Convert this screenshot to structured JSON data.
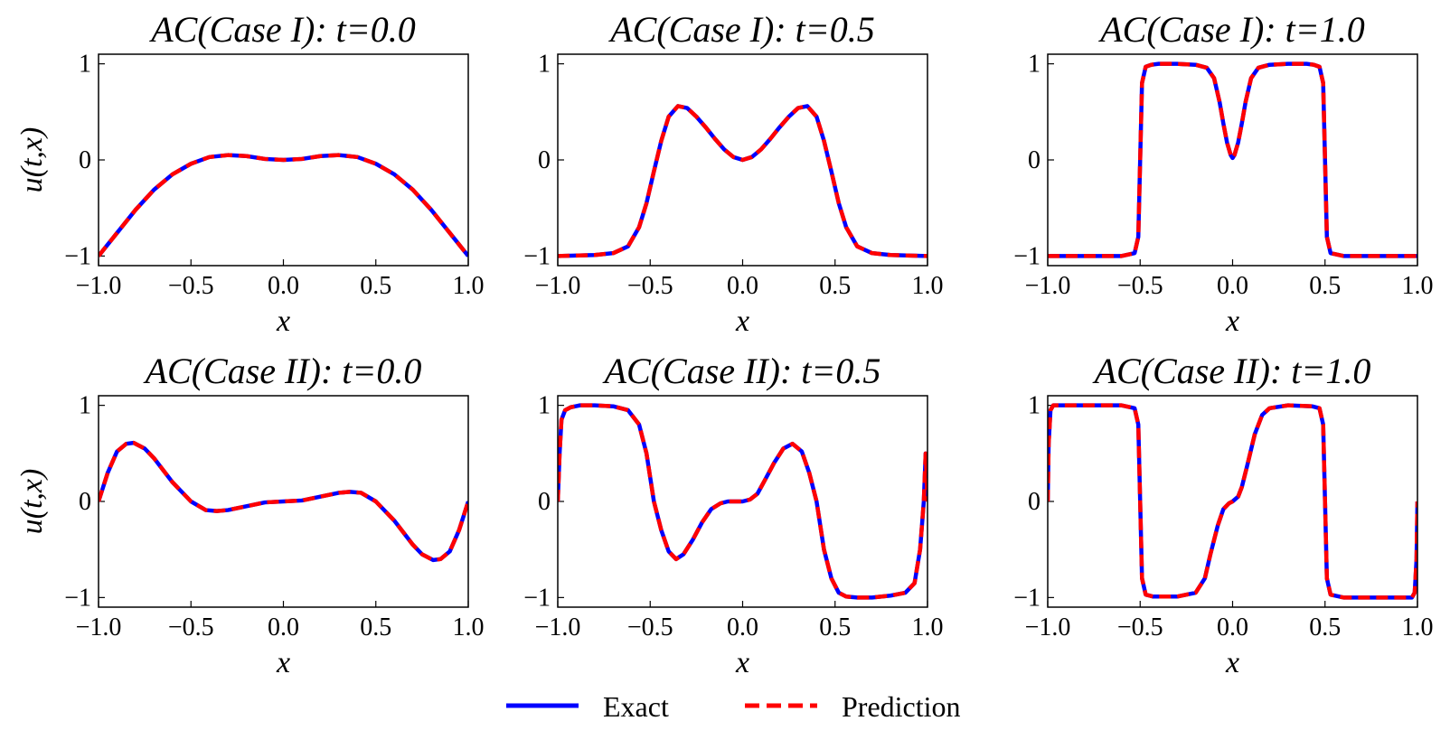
{
  "figure": {
    "legend": {
      "position": "bottom-center",
      "entries": [
        {
          "label": "Exact",
          "color": "#0000ff",
          "style": "solid"
        },
        {
          "label": "Prediction",
          "color": "#ff0000",
          "style": "dashed"
        }
      ]
    }
  },
  "chart_data": [
    {
      "type": "line",
      "row": 0,
      "col": 0,
      "title": "AC(Case I):  t=0.0",
      "xlabel": "x",
      "ylabel": "u(t,x)",
      "xlim": [
        -1.0,
        1.0
      ],
      "ylim": [
        -1.1,
        1.1
      ],
      "xticks": [
        -1.0,
        -0.5,
        0.0,
        0.5,
        1.0
      ],
      "xtick_labels": [
        "−1.0",
        "−0.5",
        "0.0",
        "0.5",
        "1.0"
      ],
      "yticks": [
        -1,
        0,
        1
      ],
      "ytick_labels": [
        "−1",
        "0",
        "1"
      ],
      "x": [
        -1.0,
        -0.9,
        -0.8,
        -0.7,
        -0.6,
        -0.5,
        -0.4,
        -0.3,
        -0.2,
        -0.1,
        0.0,
        0.1,
        0.2,
        0.3,
        0.4,
        0.5,
        0.6,
        0.7,
        0.8,
        0.9,
        1.0
      ],
      "series": [
        {
          "name": "Exact",
          "values": [
            -1.0,
            -0.76,
            -0.52,
            -0.31,
            -0.15,
            -0.04,
            0.03,
            0.05,
            0.04,
            0.01,
            0.0,
            0.01,
            0.04,
            0.05,
            0.03,
            -0.04,
            -0.15,
            -0.31,
            -0.52,
            -0.76,
            -1.0
          ]
        },
        {
          "name": "Prediction",
          "values": [
            -1.0,
            -0.76,
            -0.52,
            -0.31,
            -0.15,
            -0.04,
            0.03,
            0.05,
            0.04,
            0.01,
            0.0,
            0.01,
            0.04,
            0.05,
            0.03,
            -0.04,
            -0.15,
            -0.31,
            -0.52,
            -0.76,
            -1.0
          ]
        }
      ]
    },
    {
      "type": "line",
      "row": 0,
      "col": 1,
      "title": "AC(Case I):  t=0.5",
      "xlabel": "x",
      "ylabel": "",
      "xlim": [
        -1.0,
        1.0
      ],
      "ylim": [
        -1.1,
        1.1
      ],
      "xticks": [
        -1.0,
        -0.5,
        0.0,
        0.5,
        1.0
      ],
      "xtick_labels": [
        "−1.0",
        "−0.5",
        "0.0",
        "0.5",
        "1.0"
      ],
      "yticks": [
        -1,
        0,
        1
      ],
      "ytick_labels": [
        "−1",
        "0",
        "1"
      ],
      "x": [
        -1.0,
        -0.8,
        -0.7,
        -0.62,
        -0.56,
        -0.52,
        -0.48,
        -0.44,
        -0.4,
        -0.35,
        -0.3,
        -0.25,
        -0.2,
        -0.15,
        -0.1,
        -0.05,
        0.0,
        0.05,
        0.1,
        0.15,
        0.2,
        0.25,
        0.3,
        0.35,
        0.4,
        0.44,
        0.48,
        0.52,
        0.56,
        0.62,
        0.7,
        0.8,
        1.0
      ],
      "series": [
        {
          "name": "Exact",
          "values": [
            -1.0,
            -0.99,
            -0.97,
            -0.9,
            -0.7,
            -0.45,
            -0.12,
            0.2,
            0.45,
            0.56,
            0.54,
            0.45,
            0.34,
            0.22,
            0.11,
            0.03,
            0.0,
            0.03,
            0.11,
            0.22,
            0.34,
            0.45,
            0.54,
            0.56,
            0.45,
            0.2,
            -0.12,
            -0.45,
            -0.7,
            -0.9,
            -0.97,
            -0.99,
            -1.0
          ]
        },
        {
          "name": "Prediction",
          "values": [
            -1.0,
            -0.99,
            -0.97,
            -0.9,
            -0.7,
            -0.45,
            -0.12,
            0.2,
            0.45,
            0.56,
            0.54,
            0.45,
            0.34,
            0.22,
            0.11,
            0.03,
            0.0,
            0.03,
            0.11,
            0.22,
            0.34,
            0.45,
            0.54,
            0.56,
            0.45,
            0.2,
            -0.12,
            -0.45,
            -0.7,
            -0.9,
            -0.97,
            -0.99,
            -1.0
          ]
        }
      ]
    },
    {
      "type": "line",
      "row": 0,
      "col": 2,
      "title": "AC(Case I):  t=1.0",
      "xlabel": "x",
      "ylabel": "",
      "xlim": [
        -1.0,
        1.0
      ],
      "ylim": [
        -1.1,
        1.1
      ],
      "xticks": [
        -1.0,
        -0.5,
        0.0,
        0.5,
        1.0
      ],
      "xtick_labels": [
        "−1.0",
        "−0.5",
        "0.0",
        "0.5",
        "1.0"
      ],
      "yticks": [
        -1,
        0,
        1
      ],
      "ytick_labels": [
        "−1",
        "0",
        "1"
      ],
      "x": [
        -1.0,
        -0.6,
        -0.53,
        -0.51,
        -0.5,
        -0.49,
        -0.47,
        -0.44,
        -0.4,
        -0.3,
        -0.2,
        -0.14,
        -0.1,
        -0.07,
        -0.05,
        -0.03,
        -0.01,
        0.0,
        0.01,
        0.03,
        0.05,
        0.07,
        0.1,
        0.14,
        0.2,
        0.3,
        0.4,
        0.44,
        0.47,
        0.49,
        0.5,
        0.51,
        0.53,
        0.6,
        1.0
      ],
      "series": [
        {
          "name": "Exact",
          "values": [
            -1.0,
            -1.0,
            -0.97,
            -0.8,
            0.0,
            0.8,
            0.97,
            0.99,
            1.0,
            1.0,
            0.99,
            0.96,
            0.85,
            0.6,
            0.38,
            0.18,
            0.05,
            0.02,
            0.05,
            0.18,
            0.38,
            0.6,
            0.85,
            0.96,
            0.99,
            1.0,
            1.0,
            0.99,
            0.97,
            0.8,
            0.0,
            -0.8,
            -0.97,
            -1.0,
            -1.0
          ]
        },
        {
          "name": "Prediction",
          "values": [
            -1.0,
            -1.0,
            -0.97,
            -0.8,
            0.0,
            0.8,
            0.97,
            0.99,
            1.0,
            1.0,
            0.99,
            0.96,
            0.85,
            0.6,
            0.38,
            0.18,
            0.05,
            0.02,
            0.05,
            0.18,
            0.38,
            0.6,
            0.85,
            0.96,
            0.99,
            1.0,
            1.0,
            0.99,
            0.97,
            0.8,
            0.0,
            -0.8,
            -0.97,
            -1.0,
            -1.0
          ]
        }
      ]
    },
    {
      "type": "line",
      "row": 1,
      "col": 0,
      "title": "AC(Case II):  t=0.0",
      "xlabel": "x",
      "ylabel": "u(t,x)",
      "xlim": [
        -1.0,
        1.0
      ],
      "ylim": [
        -1.1,
        1.1
      ],
      "xticks": [
        -1.0,
        -0.5,
        0.0,
        0.5,
        1.0
      ],
      "xtick_labels": [
        "−1.0",
        "−0.5",
        "0.0",
        "0.5",
        "1.0"
      ],
      "yticks": [
        -1,
        0,
        1
      ],
      "ytick_labels": [
        "−1",
        "0",
        "1"
      ],
      "x": [
        -1.0,
        -0.95,
        -0.9,
        -0.85,
        -0.81,
        -0.75,
        -0.7,
        -0.6,
        -0.5,
        -0.42,
        -0.36,
        -0.3,
        -0.2,
        -0.1,
        0.0,
        0.1,
        0.2,
        0.3,
        0.36,
        0.42,
        0.5,
        0.6,
        0.7,
        0.75,
        0.81,
        0.85,
        0.9,
        0.95,
        1.0
      ],
      "series": [
        {
          "name": "Exact",
          "values": [
            0.0,
            0.3,
            0.52,
            0.6,
            0.61,
            0.55,
            0.45,
            0.2,
            0.0,
            -0.09,
            -0.1,
            -0.09,
            -0.05,
            -0.01,
            0.0,
            0.01,
            0.05,
            0.09,
            0.1,
            0.09,
            0.0,
            -0.2,
            -0.45,
            -0.55,
            -0.61,
            -0.6,
            -0.52,
            -0.3,
            0.0
          ]
        },
        {
          "name": "Prediction",
          "values": [
            0.0,
            0.3,
            0.52,
            0.6,
            0.61,
            0.55,
            0.45,
            0.2,
            0.0,
            -0.09,
            -0.1,
            -0.09,
            -0.05,
            -0.01,
            0.0,
            0.01,
            0.05,
            0.09,
            0.1,
            0.09,
            0.0,
            -0.2,
            -0.45,
            -0.55,
            -0.61,
            -0.6,
            -0.52,
            -0.3,
            0.0
          ]
        }
      ]
    },
    {
      "type": "line",
      "row": 1,
      "col": 1,
      "title": "AC(Case II):  t=0.5",
      "xlabel": "x",
      "ylabel": "",
      "xlim": [
        -1.0,
        1.0
      ],
      "ylim": [
        -1.1,
        1.1
      ],
      "xticks": [
        -1.0,
        -0.5,
        0.0,
        0.5,
        1.0
      ],
      "xtick_labels": [
        "−1.0",
        "−0.5",
        "0.0",
        "0.5",
        "1.0"
      ],
      "yticks": [
        -1,
        0,
        1
      ],
      "ytick_labels": [
        "−1",
        "0",
        "1"
      ],
      "x": [
        -1.0,
        -0.99,
        -0.98,
        -0.96,
        -0.93,
        -0.88,
        -0.8,
        -0.7,
        -0.62,
        -0.56,
        -0.52,
        -0.48,
        -0.44,
        -0.4,
        -0.36,
        -0.32,
        -0.27,
        -0.22,
        -0.17,
        -0.12,
        -0.08,
        -0.04,
        0.0,
        0.04,
        0.08,
        0.12,
        0.17,
        0.22,
        0.27,
        0.32,
        0.36,
        0.4,
        0.44,
        0.48,
        0.52,
        0.56,
        0.62,
        0.7,
        0.8,
        0.88,
        0.93,
        0.96,
        0.98,
        0.99,
        1.0
      ],
      "series": [
        {
          "name": "Exact",
          "values": [
            0.0,
            0.5,
            0.85,
            0.95,
            0.98,
            1.0,
            1.0,
            0.99,
            0.95,
            0.8,
            0.5,
            0.0,
            -0.3,
            -0.52,
            -0.6,
            -0.55,
            -0.4,
            -0.22,
            -0.08,
            -0.02,
            0.0,
            0.0,
            0.0,
            0.02,
            0.08,
            0.22,
            0.4,
            0.55,
            0.6,
            0.52,
            0.3,
            0.0,
            -0.5,
            -0.8,
            -0.95,
            -0.99,
            -1.0,
            -1.0,
            -0.98,
            -0.95,
            -0.85,
            -0.5,
            0.0,
            0.5,
            0.0
          ]
        },
        {
          "name": "Prediction",
          "values": [
            0.0,
            0.5,
            0.85,
            0.95,
            0.98,
            1.0,
            1.0,
            0.99,
            0.95,
            0.8,
            0.5,
            0.0,
            -0.3,
            -0.52,
            -0.6,
            -0.55,
            -0.4,
            -0.22,
            -0.08,
            -0.02,
            0.0,
            0.0,
            0.0,
            0.02,
            0.08,
            0.22,
            0.4,
            0.55,
            0.6,
            0.52,
            0.3,
            0.0,
            -0.5,
            -0.8,
            -0.95,
            -0.99,
            -1.0,
            -1.0,
            -0.98,
            -0.95,
            -0.85,
            -0.5,
            0.0,
            0.5,
            0.0
          ]
        }
      ]
    },
    {
      "type": "line",
      "row": 1,
      "col": 2,
      "title": "AC(Case II):  t=1.0",
      "xlabel": "x",
      "ylabel": "",
      "xlim": [
        -1.0,
        1.0
      ],
      "ylim": [
        -1.1,
        1.1
      ],
      "xticks": [
        -1.0,
        -0.5,
        0.0,
        0.5,
        1.0
      ],
      "xtick_labels": [
        "−1.0",
        "−0.5",
        "0.0",
        "0.5",
        "1.0"
      ],
      "yticks": [
        -1,
        0,
        1
      ],
      "ytick_labels": [
        "−1",
        "0",
        "1"
      ],
      "x": [
        -1.0,
        -0.995,
        -0.985,
        -0.97,
        -0.9,
        -0.6,
        -0.53,
        -0.51,
        -0.5,
        -0.49,
        -0.47,
        -0.43,
        -0.3,
        -0.2,
        -0.15,
        -0.12,
        -0.08,
        -0.05,
        -0.02,
        0.0,
        0.03,
        0.05,
        0.08,
        0.12,
        0.16,
        0.2,
        0.3,
        0.43,
        0.47,
        0.49,
        0.5,
        0.51,
        0.53,
        0.6,
        0.9,
        0.97,
        0.985,
        0.995,
        1.0
      ],
      "series": [
        {
          "name": "Exact",
          "values": [
            0.0,
            0.6,
            0.95,
            1.0,
            1.0,
            1.0,
            0.97,
            0.8,
            0.0,
            -0.8,
            -0.97,
            -0.99,
            -0.99,
            -0.95,
            -0.8,
            -0.55,
            -0.25,
            -0.08,
            -0.02,
            0.0,
            0.05,
            0.15,
            0.38,
            0.7,
            0.9,
            0.97,
            1.0,
            0.99,
            0.97,
            0.8,
            0.0,
            -0.8,
            -0.97,
            -1.0,
            -1.0,
            -1.0,
            -0.95,
            -0.6,
            0.0
          ]
        },
        {
          "name": "Prediction",
          "values": [
            0.0,
            0.6,
            0.95,
            1.0,
            1.0,
            1.0,
            0.97,
            0.8,
            0.0,
            -0.8,
            -0.97,
            -0.99,
            -0.99,
            -0.95,
            -0.8,
            -0.55,
            -0.25,
            -0.08,
            -0.02,
            0.0,
            0.05,
            0.15,
            0.38,
            0.7,
            0.9,
            0.97,
            1.0,
            0.99,
            0.97,
            0.8,
            0.0,
            -0.8,
            -0.97,
            -1.0,
            -1.0,
            -1.0,
            -0.95,
            -0.6,
            0.0
          ]
        }
      ]
    }
  ]
}
